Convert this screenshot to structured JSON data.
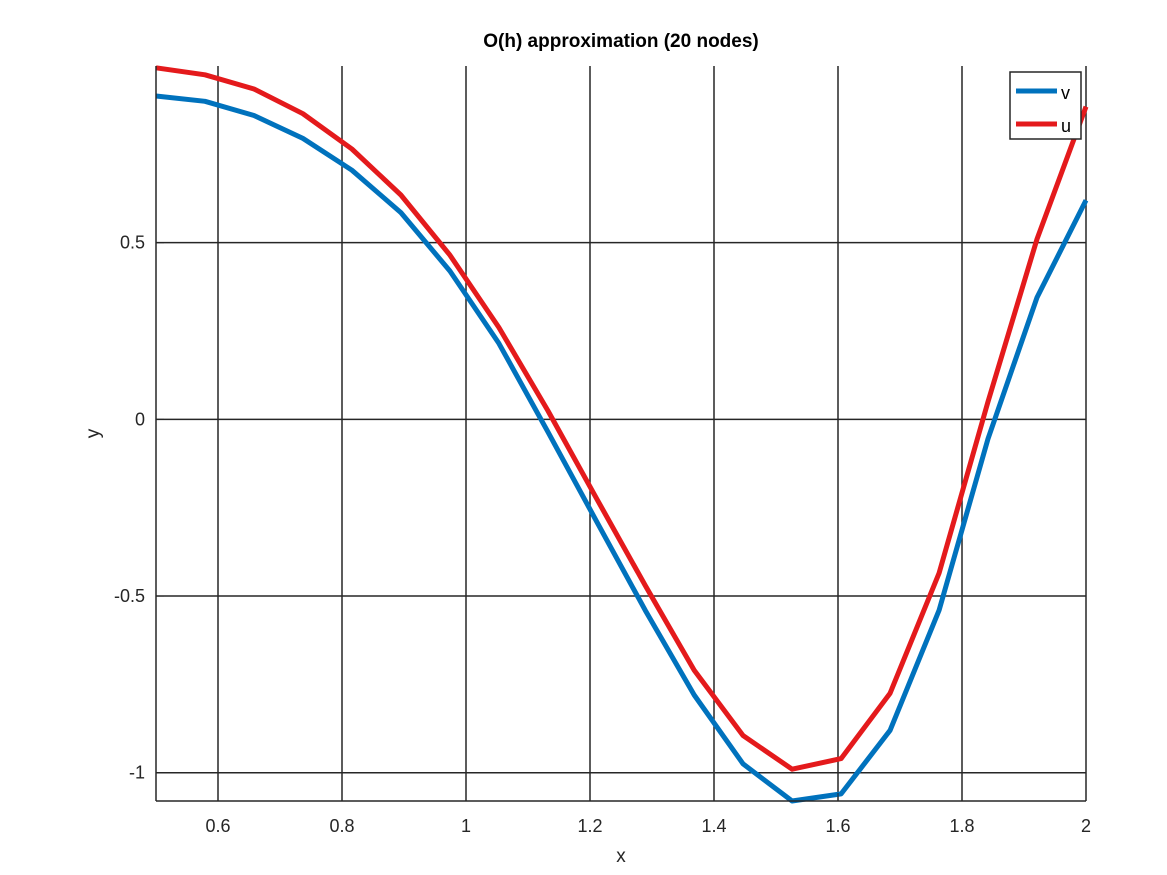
{
  "chart_data": {
    "type": "line",
    "title": "O(h) approximation (20 nodes)",
    "xlabel": "x",
    "ylabel": "y",
    "xlim": [
      0.5,
      2
    ],
    "ylim": [
      -1.08,
      1.0
    ],
    "xticks": [
      0.6,
      0.8,
      1,
      1.2,
      1.4,
      1.6,
      1.8,
      2
    ],
    "xtick_labels": [
      "0.6",
      "0.8",
      "1",
      "1.2",
      "1.4",
      "1.6",
      "1.8",
      "2"
    ],
    "yticks": [
      -1,
      -0.5,
      0,
      0.5
    ],
    "ytick_labels": [
      "-1",
      "-0.5",
      "0",
      "0.5"
    ],
    "grid": true,
    "legend_position": "top-right",
    "series": [
      {
        "name": "v",
        "color": "#0072bd",
        "x": [
          0.5,
          0.579,
          0.658,
          0.737,
          0.816,
          0.895,
          0.974,
          1.053,
          1.132,
          1.211,
          1.289,
          1.368,
          1.447,
          1.526,
          1.605,
          1.684,
          1.763,
          1.842,
          1.921,
          2.0
        ],
        "y": [
          0.915,
          0.9,
          0.86,
          0.795,
          0.705,
          0.585,
          0.42,
          0.215,
          -0.035,
          -0.29,
          -0.54,
          -0.78,
          -0.975,
          -1.08,
          -1.06,
          -0.88,
          -0.54,
          -0.055,
          0.345,
          0.62
        ]
      },
      {
        "name": "u",
        "color": "#e41a1c",
        "x": [
          0.5,
          0.579,
          0.658,
          0.737,
          0.816,
          0.895,
          0.974,
          1.053,
          1.132,
          1.211,
          1.289,
          1.368,
          1.447,
          1.526,
          1.605,
          1.684,
          1.763,
          1.842,
          1.921,
          2.0
        ],
        "y": [
          0.995,
          0.975,
          0.935,
          0.865,
          0.765,
          0.635,
          0.465,
          0.26,
          0.025,
          -0.225,
          -0.47,
          -0.71,
          -0.895,
          -0.99,
          -0.96,
          -0.775,
          -0.435,
          0.05,
          0.51,
          0.885
        ]
      }
    ]
  }
}
